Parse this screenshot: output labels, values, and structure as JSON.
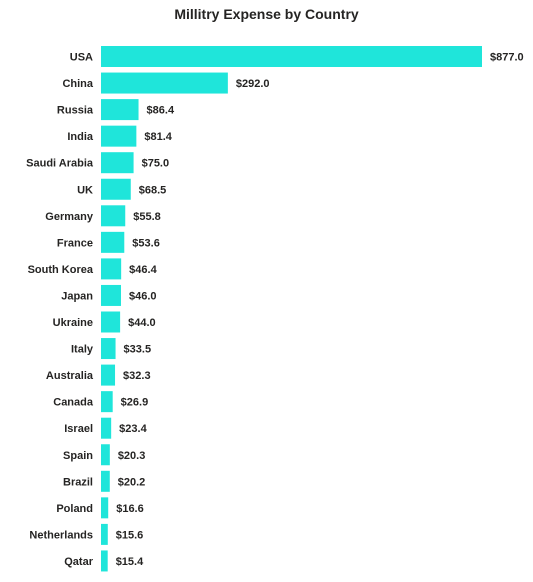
{
  "chart_data": {
    "type": "bar",
    "orientation": "horizontal",
    "title": "Millitry Expense by Country",
    "xlabel": "",
    "ylabel": "",
    "categories": [
      "USA",
      "China",
      "Russia",
      "India",
      "Saudi Arabia",
      "UK",
      "Germany",
      "France",
      "South Korea",
      "Japan",
      "Ukraine",
      "Italy",
      "Australia",
      "Canada",
      "Israel",
      "Spain",
      "Brazil",
      "Poland",
      "Netherlands",
      "Qatar"
    ],
    "values": [
      877.0,
      292.0,
      86.4,
      81.4,
      75.0,
      68.5,
      55.8,
      53.6,
      46.4,
      46.0,
      44.0,
      33.5,
      32.3,
      26.9,
      23.4,
      20.3,
      20.2,
      16.6,
      15.6,
      15.4
    ],
    "value_labels": [
      "$877.0",
      "$292.0",
      "$86.4",
      "$81.4",
      "$75.0",
      "$68.5",
      "$55.8",
      "$53.6",
      "$46.4",
      "$46.0",
      "$44.0",
      "$33.5",
      "$32.3",
      "$26.9",
      "$23.4",
      "$20.3",
      "$20.2",
      "$16.6",
      "$15.6",
      "$15.4"
    ],
    "xlim": [
      0,
      877
    ],
    "grid": false,
    "legend": "none",
    "bar_color": "#1FE5DA"
  }
}
